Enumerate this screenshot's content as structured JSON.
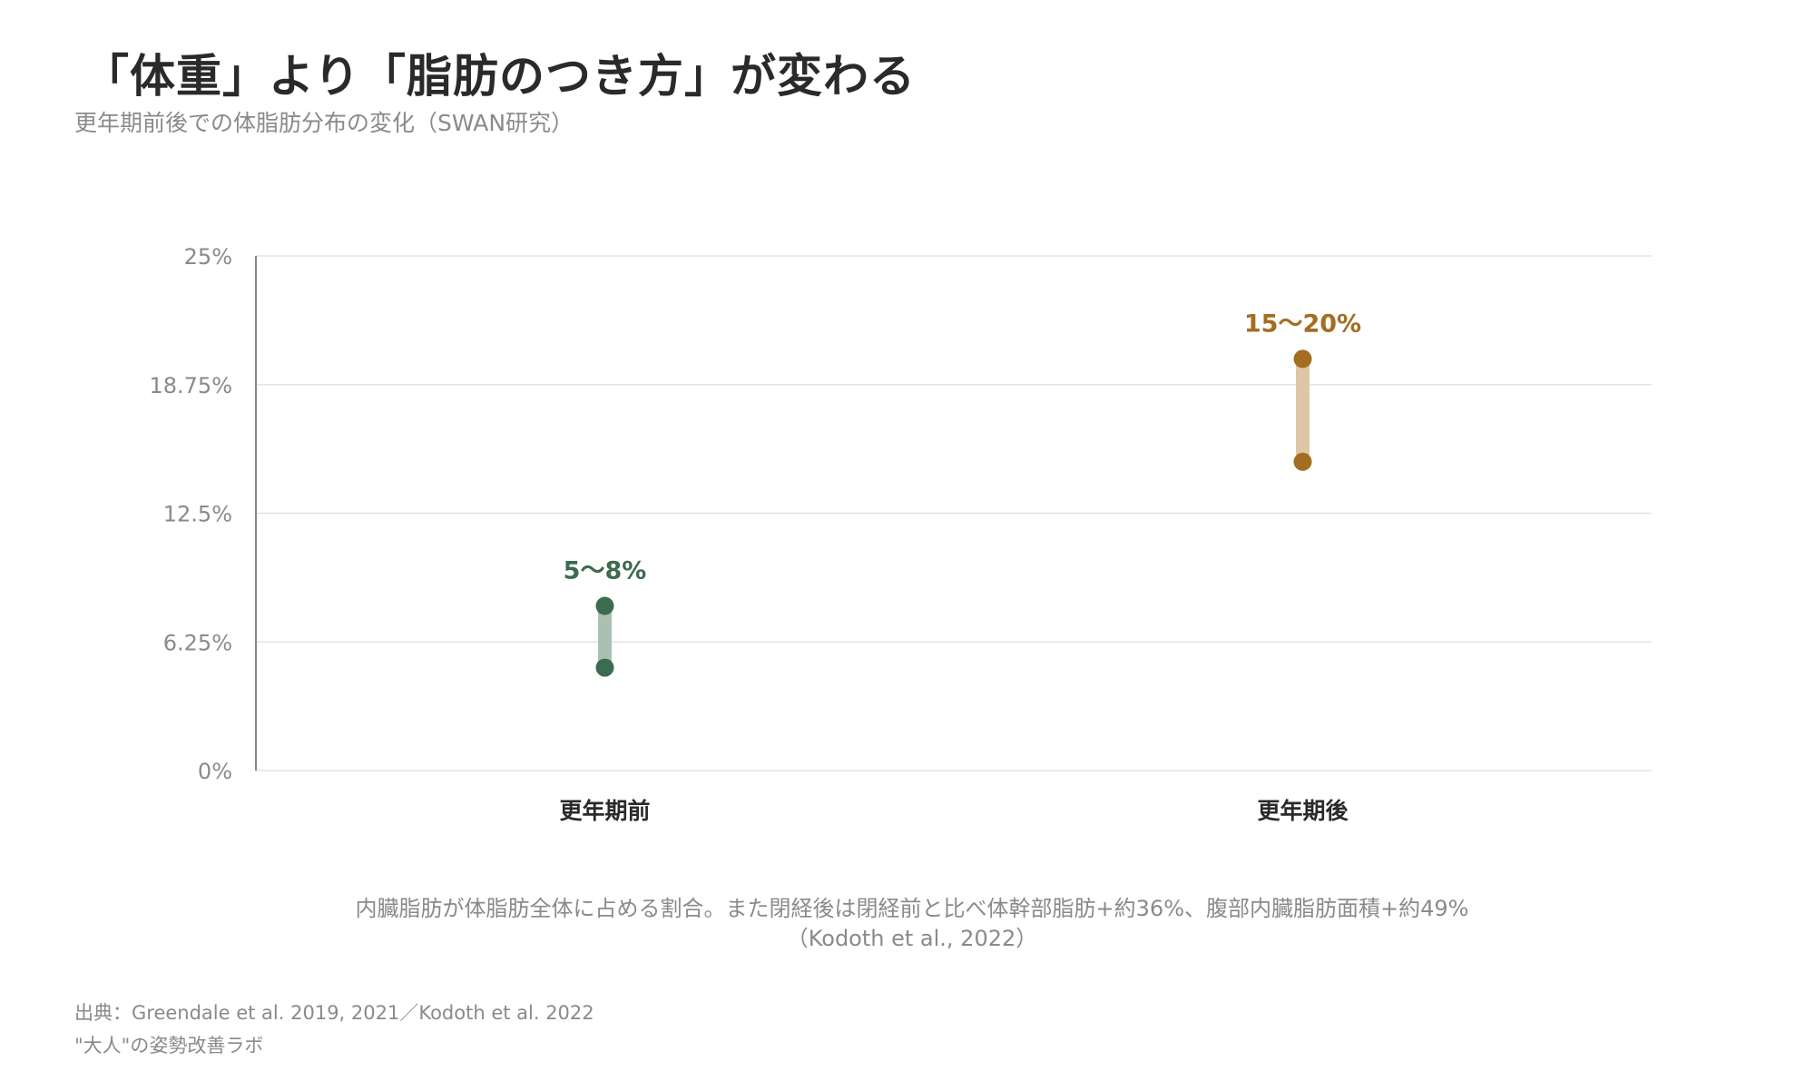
{
  "header": {
    "title": "「体重」より「脂肪のつき方」が変わる",
    "subtitle": "更年期前後での体脂肪分布の変化（SWAN研究）"
  },
  "chart_data": {
    "type": "range",
    "categories": [
      "更年期前",
      "更年期後"
    ],
    "ranges": [
      {
        "category": "更年期前",
        "low": 5,
        "high": 8,
        "label": "5〜8%",
        "color": "#3d6b4f",
        "bar_color": "#a9c0b2"
      },
      {
        "category": "更年期後",
        "low": 15,
        "high": 20,
        "label": "15〜20%",
        "color": "#a36d22",
        "bar_color": "#dfc6a6"
      }
    ],
    "ylim": [
      0,
      25
    ],
    "yticks": [
      0,
      6.25,
      12.5,
      18.75,
      25
    ],
    "ytick_labels": [
      "0%",
      "6.25%",
      "12.5%",
      "18.75%",
      "25%"
    ],
    "grid": true
  },
  "footer": {
    "caption": "内臓脂肪が体脂肪全体に占める割合。また閉経後は閉経前と比べ体幹部脂肪+約36%、腹部内臓脂肪面積+約49%（Kodoth et al., 2022）",
    "source": "出典：Greendale et al. 2019, 2021／Kodoth et al. 2022",
    "brand": "\"大人\"の姿勢改善ラボ"
  },
  "colors": {
    "grid": "#e3e3e3",
    "axis": "#888888",
    "tick_text": "#8a8a8a",
    "category_text": "#2a2a2a"
  }
}
